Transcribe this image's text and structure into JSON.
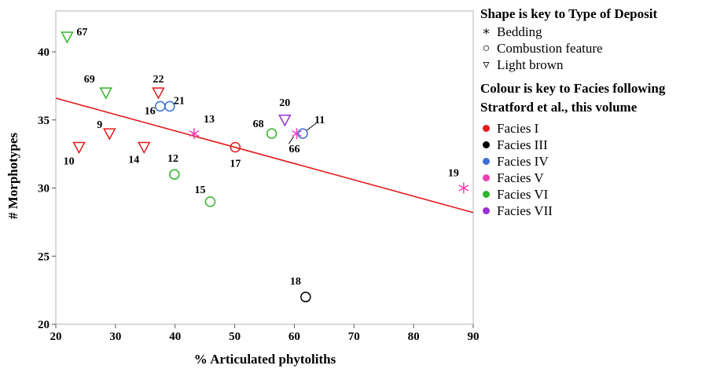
{
  "chart_data": {
    "type": "scatter",
    "xlabel": "% Articulated phytoliths",
    "ylabel": "# Morphotypes",
    "xlim": [
      20,
      90
    ],
    "ylim": [
      20,
      43
    ],
    "xticks": [
      20,
      30,
      40,
      50,
      60,
      70,
      80,
      90
    ],
    "yticks": [
      20,
      25,
      30,
      35,
      40
    ],
    "grid": false,
    "points": [
      {
        "label": "67",
        "x": 21.9,
        "y": 41.1,
        "shape": "triangle",
        "facies": "Facies VI"
      },
      {
        "label": "69",
        "x": 28.4,
        "y": 37.0,
        "shape": "triangle",
        "facies": "Facies VI"
      },
      {
        "label": "22",
        "x": 37.2,
        "y": 37.0,
        "shape": "triangle",
        "facies": "Facies I"
      },
      {
        "label": "16",
        "x": 37.5,
        "y": 36.0,
        "shape": "circle",
        "facies": "Facies IV"
      },
      {
        "label": "21",
        "x": 39.1,
        "y": 36.0,
        "shape": "circle",
        "facies": "Facies IV"
      },
      {
        "label": "9",
        "x": 29.0,
        "y": 34.0,
        "shape": "triangle",
        "facies": "Facies I"
      },
      {
        "label": "10",
        "x": 23.9,
        "y": 33.0,
        "shape": "triangle",
        "facies": "Facies I"
      },
      {
        "label": "14",
        "x": 34.8,
        "y": 33.0,
        "shape": "triangle",
        "facies": "Facies I"
      },
      {
        "label": "13",
        "x": 43.2,
        "y": 34.0,
        "shape": "star",
        "facies": "Facies V"
      },
      {
        "label": "17",
        "x": 50.1,
        "y": 33.0,
        "shape": "circle",
        "facies": "Facies I"
      },
      {
        "label": "12",
        "x": 39.9,
        "y": 31.0,
        "shape": "circle",
        "facies": "Facies VI"
      },
      {
        "label": "15",
        "x": 45.9,
        "y": 29.0,
        "shape": "circle",
        "facies": "Facies VI"
      },
      {
        "label": "68",
        "x": 56.2,
        "y": 34.0,
        "shape": "circle",
        "facies": "Facies VI"
      },
      {
        "label": "20",
        "x": 58.4,
        "y": 35.0,
        "shape": "triangle",
        "facies": "Facies VII"
      },
      {
        "label": "66",
        "x": 60.4,
        "y": 34.0,
        "shape": "star",
        "facies": "Facies V"
      },
      {
        "label": "11",
        "x": 61.4,
        "y": 34.0,
        "shape": "circle",
        "facies": "Facies IV"
      },
      {
        "label": "19",
        "x": 88.4,
        "y": 30.0,
        "shape": "star",
        "facies": "Facies V"
      },
      {
        "label": "18",
        "x": 61.9,
        "y": 22.0,
        "shape": "circle",
        "facies": "Facies III"
      }
    ],
    "regression_line": {
      "x": [
        20,
        90
      ],
      "y": [
        36.6,
        28.2
      ],
      "color": "#e31a1c"
    },
    "legend_placement": "right",
    "shape_legend": {
      "title": "Shape is key to Type of Deposit",
      "items": [
        {
          "symbol": "∗",
          "label": "Bedding"
        },
        {
          "symbol": "○",
          "label": "Combustion feature"
        },
        {
          "symbol": "▿",
          "label": "Light brown"
        }
      ]
    },
    "color_legend": {
      "title_line1": "Colour is key to Facies following",
      "title_line2": "Stratford et al., this volume",
      "items": [
        {
          "label": "Facies I",
          "color": "#e31a1c"
        },
        {
          "label": "Facies III",
          "color": "#000000"
        },
        {
          "label": "Facies IV",
          "color": "#3a6fd8"
        },
        {
          "label": "Facies V",
          "color": "#ef3fb5"
        },
        {
          "label": "Facies VI",
          "color": "#2fb52a"
        },
        {
          "label": "Facies VII",
          "color": "#9b2fd6"
        }
      ]
    }
  }
}
